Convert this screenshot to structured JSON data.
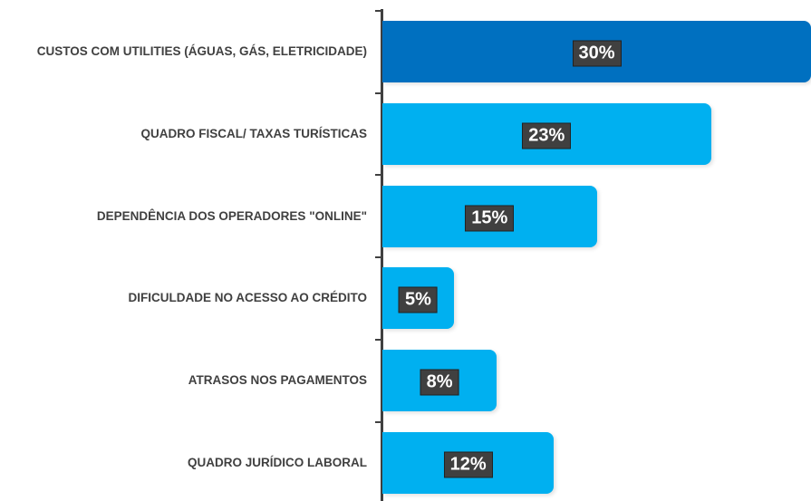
{
  "chart_data": {
    "type": "barh",
    "categories": [
      "CUSTOS COM UTILITIES (ÁGUAS, GÁS, ELETRICIDADE)",
      "QUADRO FISCAL/ TAXAS TURÍSTICAS",
      "DEPENDÊNCIA DOS OPERADORES \"ONLINE\"",
      "DIFICULDADE NO ACESSO AO CRÉDITO",
      "ATRASOS NOS PAGAMENTOS",
      "QUADRO JURÍDICO LABORAL"
    ],
    "values": [
      30,
      23,
      15,
      5,
      8,
      12
    ],
    "value_labels": [
      "30%",
      "23%",
      "15%",
      "5%",
      "8%",
      "12%"
    ],
    "colors": [
      "#0070c0",
      "#00b0f0",
      "#00b0f0",
      "#00b0f0",
      "#00b0f0",
      "#00b0f0"
    ]
  }
}
